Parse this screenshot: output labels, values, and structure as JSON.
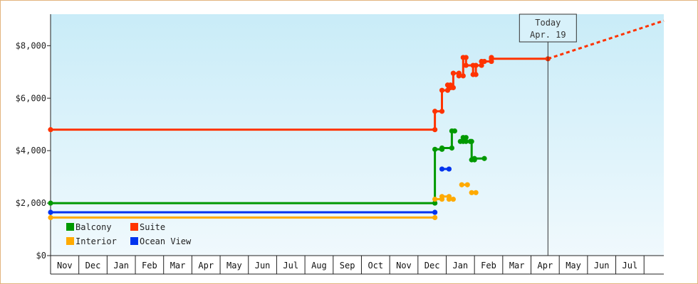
{
  "chart_data": {
    "type": "line",
    "y_tick_labels": [
      "$0",
      "$2,000",
      "$4,000",
      "$6,000",
      "$8,000"
    ],
    "y_ticks": [
      0,
      2000,
      4000,
      6000,
      8000
    ],
    "ylim": [
      0,
      9200
    ],
    "x_range": [
      0,
      21.7
    ],
    "months": [
      "Nov",
      "Dec",
      "Jan",
      "Feb",
      "Mar",
      "Apr",
      "May",
      "Jun",
      "Jul",
      "Aug",
      "Sep",
      "Oct",
      "Nov",
      "Dec",
      "Jan",
      "Feb",
      "Mar",
      "Apr",
      "May",
      "Jun",
      "Jul"
    ],
    "today": {
      "title": "Today",
      "date": "Apr. 19",
      "x": 17.6
    },
    "grid": false,
    "legend": {
      "placement": "bottom-left"
    },
    "colors": {
      "plot_top": "#c9ecf8",
      "plot_bottom": "#f0f9fd",
      "axis": "#222222",
      "frame": "#e3b47e"
    },
    "series": [
      {
        "name": "Suite",
        "color": "#ff3300",
        "segments": [
          [
            [
              0,
              4800
            ],
            [
              13.6,
              4800
            ],
            [
              13.6,
              5500
            ],
            [
              13.85,
              5500
            ],
            [
              13.85,
              6300
            ],
            [
              14.05,
              6300
            ],
            [
              14.05,
              6500
            ],
            [
              14.15,
              6500
            ],
            [
              14.15,
              6400
            ],
            [
              14.25,
              6400
            ],
            [
              14.25,
              6950
            ],
            [
              14.45,
              6950
            ],
            [
              14.45,
              6850
            ],
            [
              14.6,
              6850
            ],
            [
              14.6,
              7550
            ],
            [
              14.7,
              7550
            ],
            [
              14.7,
              7250
            ],
            [
              14.95,
              7250
            ],
            [
              14.95,
              6900
            ],
            [
              15.05,
              6900
            ],
            [
              15.05,
              7250
            ],
            [
              15.25,
              7250
            ],
            [
              15.25,
              7400
            ],
            [
              15.35,
              7400
            ],
            [
              15.35,
              7400
            ],
            [
              15.6,
              7400
            ],
            [
              15.6,
              7550
            ],
            [
              15.6,
              7500
            ],
            [
              17.6,
              7500
            ]
          ]
        ],
        "projection": [
          [
            17.6,
            7500
          ],
          [
            21.7,
            8950
          ]
        ]
      },
      {
        "name": "Balcony",
        "color": "#009900",
        "segments": [
          [
            [
              0,
              2000
            ],
            [
              13.6,
              2000
            ],
            [
              13.6,
              4050
            ],
            [
              13.85,
              4050
            ],
            [
              13.85,
              4100
            ],
            [
              14.2,
              4100
            ],
            [
              14.2,
              4750
            ],
            [
              14.3,
              4750
            ]
          ],
          [
            [
              14.5,
              4350
            ],
            [
              14.6,
              4350
            ],
            [
              14.6,
              4500
            ],
            [
              14.7,
              4500
            ],
            [
              14.7,
              4350
            ],
            [
              14.85,
              4350
            ],
            [
              14.85,
              4350
            ],
            [
              14.9,
              4350
            ],
            [
              14.9,
              3650
            ],
            [
              15.0,
              3650
            ],
            [
              15.0,
              3700
            ],
            [
              15.35,
              3700
            ]
          ]
        ],
        "projection": []
      },
      {
        "name": "Interior",
        "color": "#ffaa00",
        "segments": [
          [
            [
              0,
              1450
            ],
            [
              13.6,
              1450
            ]
          ],
          [
            [
              13.6,
              2150
            ],
            [
              13.85,
              2150
            ],
            [
              13.85,
              2250
            ],
            [
              14.1,
              2250
            ],
            [
              14.1,
              2150
            ],
            [
              14.25,
              2150
            ]
          ],
          [
            [
              14.55,
              2700
            ],
            [
              14.75,
              2700
            ]
          ],
          [
            [
              14.9,
              2400
            ],
            [
              15.05,
              2400
            ]
          ]
        ],
        "projection": []
      },
      {
        "name": "Ocean View",
        "color": "#0033ee",
        "segments": [
          [
            [
              0,
              1650
            ],
            [
              13.6,
              1650
            ]
          ],
          [
            [
              13.85,
              3300
            ],
            [
              14.1,
              3300
            ]
          ]
        ],
        "projection": []
      }
    ]
  }
}
